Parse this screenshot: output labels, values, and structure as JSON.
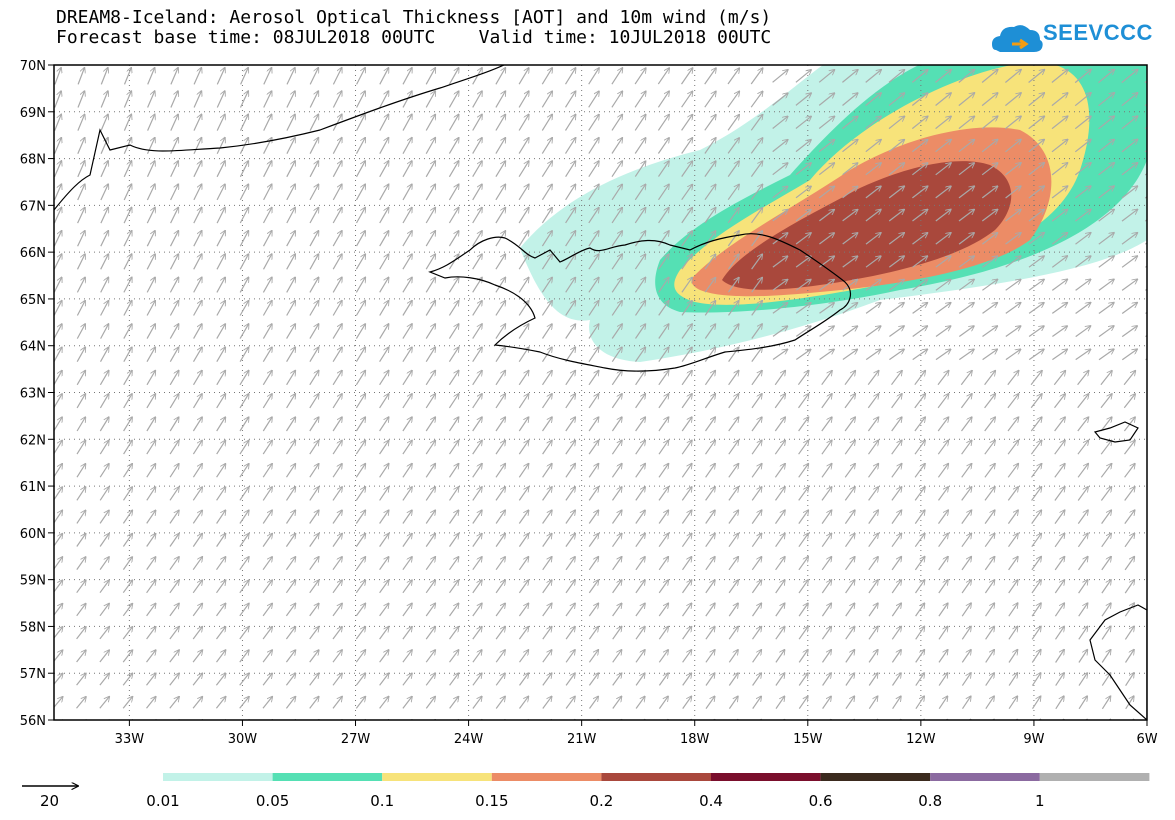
{
  "header": {
    "title_line1": "DREAM8-Iceland: Aerosol Optical Thickness [AOT] and 10m wind (m/s)",
    "title_line2": "Forecast base time: 08JUL2018 00UTC    Valid time: 10JUL2018 00UTC"
  },
  "logo": {
    "text": "SEEVCCC",
    "icon": "cloud-logo-icon",
    "color": "#1e8fd6"
  },
  "map": {
    "lat_range": [
      56,
      70
    ],
    "lon_range": [
      -35,
      -6
    ],
    "lat_ticks": [
      "70N",
      "69N",
      "68N",
      "67N",
      "66N",
      "65N",
      "64N",
      "63N",
      "62N",
      "61N",
      "60N",
      "59N",
      "58N",
      "57N",
      "56N"
    ],
    "lon_ticks": [
      "33W",
      "30W",
      "27W",
      "24W",
      "21W",
      "18W",
      "15W",
      "12W",
      "9W",
      "6W"
    ],
    "grid": "dotted"
  },
  "wind": {
    "reference_value": "20",
    "arrow_color": "#a9a9a9"
  },
  "colorbar": {
    "labels": [
      "0.01",
      "0.05",
      "0.1",
      "0.15",
      "0.2",
      "0.4",
      "0.6",
      "0.8",
      "1"
    ],
    "colors": [
      "#c2f2e8",
      "#55e0b4",
      "#f7e37a",
      "#ec8c66",
      "#a9483c",
      "#7a0e2c",
      "#3b2a1e",
      "#8b6aa0",
      "#b0b0b0"
    ]
  }
}
